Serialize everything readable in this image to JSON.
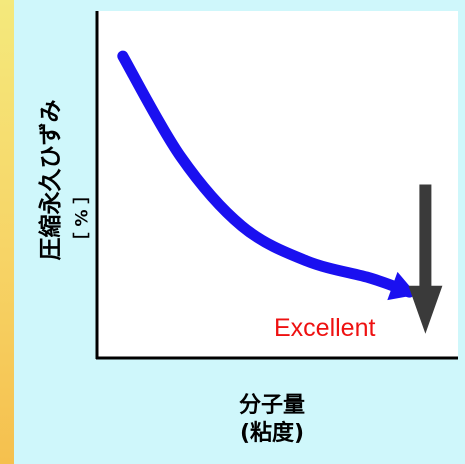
{
  "chart_data": {
    "type": "line",
    "ylabel": "圧縮永久ひずみ",
    "ylabel_unit": "［ % ］",
    "xlabel_line1": "分子量",
    "xlabel_line2": "(粘度)",
    "annotation": "Excellent",
    "grid": false,
    "series": [
      {
        "color": "#1a10f0",
        "arrow": true,
        "points": [
          [
            0.08,
            0.87
          ],
          [
            0.26,
            0.58
          ],
          [
            0.45,
            0.38
          ],
          [
            0.65,
            0.28
          ],
          [
            0.85,
            0.23
          ],
          [
            0.97,
            0.19
          ]
        ]
      }
    ],
    "indicator_arrow": {
      "direction": "down",
      "color": "#3a3a3a",
      "x": 1.02,
      "from_y": 0.5,
      "to_y": 0.07
    },
    "colors": {
      "background": "#cff7fb",
      "plot_background": "#ffffff",
      "axis": "#000000",
      "annotation": "#ee1111"
    }
  }
}
